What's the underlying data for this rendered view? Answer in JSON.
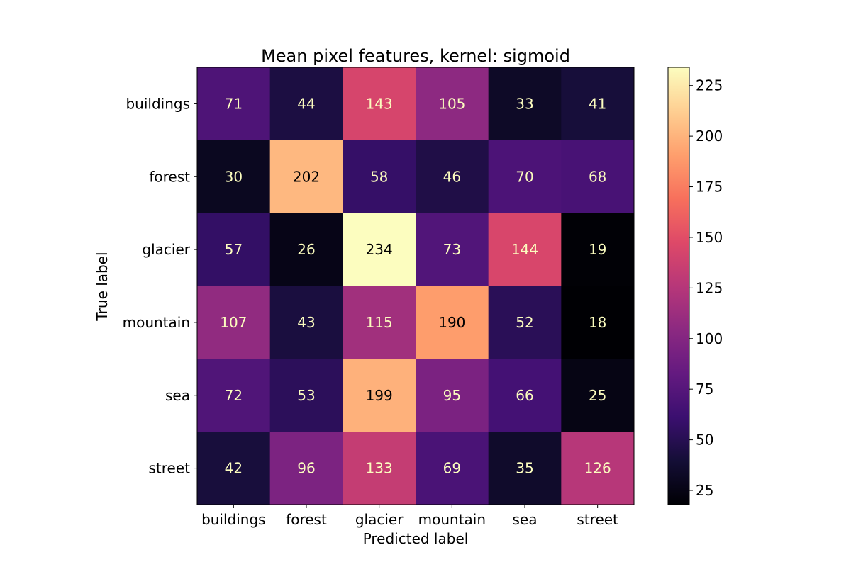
{
  "chart_data": {
    "type": "heatmap",
    "title": "Mean pixel features, kernel: sigmoid",
    "xlabel": "Predicted label",
    "ylabel": "True label",
    "x_categories": [
      "buildings",
      "forest",
      "glacier",
      "mountain",
      "sea",
      "street"
    ],
    "y_categories": [
      "buildings",
      "forest",
      "glacier",
      "mountain",
      "sea",
      "street"
    ],
    "values": [
      [
        71,
        44,
        143,
        105,
        33,
        41
      ],
      [
        30,
        202,
        58,
        46,
        70,
        68
      ],
      [
        57,
        26,
        234,
        73,
        144,
        19
      ],
      [
        107,
        43,
        115,
        190,
        52,
        18
      ],
      [
        72,
        53,
        199,
        95,
        66,
        25
      ],
      [
        42,
        96,
        133,
        69,
        35,
        126
      ]
    ],
    "colormap": "magma",
    "value_range": [
      18,
      234
    ],
    "colorbar": {
      "ticks": [
        25,
        50,
        75,
        100,
        125,
        150,
        175,
        200,
        225
      ],
      "position": "right"
    },
    "label_colors": {
      "light": "#fcfdbf",
      "dark": "#000000"
    },
    "grid": false
  }
}
